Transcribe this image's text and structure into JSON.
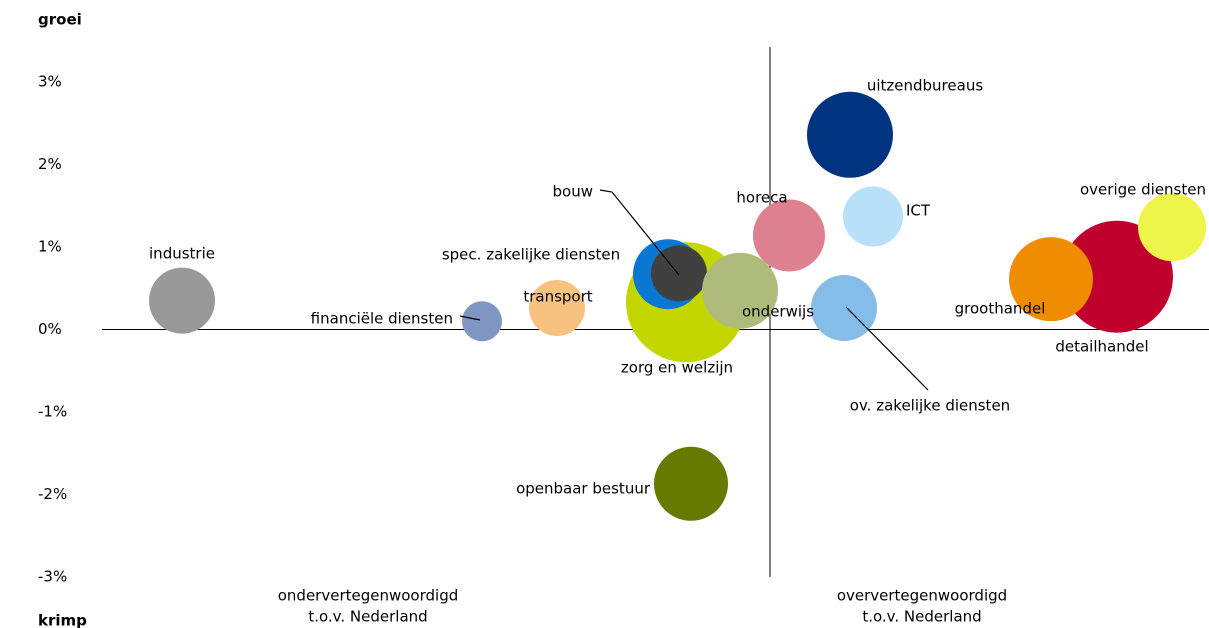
{
  "chart_data": {
    "type": "bubble",
    "y_label_top": "groei",
    "y_label_bottom": "krimp",
    "x_label_left": [
      "ondervertegenwoordigd",
      "t.o.v. Nederland"
    ],
    "x_label_right": [
      "oververtegenwoordigd",
      "t.o.v. Nederland"
    ],
    "categories": [
      "industrie",
      "financiële diensten",
      "transport",
      "zorg en welzijn",
      "spec. zakelijke diensten",
      "bouw",
      "onderwijs",
      "horeca",
      "uitzendbureaus",
      "ICT",
      "ov. zakelijke diensten",
      "detailhandel",
      "groothandel",
      "overige diensten",
      "openbaar bestuur"
    ],
    "x": [
      -5.88,
      -2.88,
      -2.13,
      -0.84,
      -1.02,
      -0.91,
      -0.3,
      0.19,
      0.8,
      1.03,
      0.74,
      3.47,
      2.81,
      4.02,
      -0.79
    ],
    "y": [
      0.35,
      0.1,
      0.26,
      0.33,
      0.67,
      0.68,
      0.47,
      1.14,
      2.36,
      1.37,
      0.26,
      0.64,
      0.61,
      1.24,
      -1.87
    ],
    "size": [
      33,
      20,
      28,
      60,
      35,
      28,
      38,
      36,
      43,
      30,
      33,
      56,
      42,
      34,
      37
    ],
    "colors": [
      "#999999",
      "#7f96c2",
      "#f7c27f",
      "#c4d600",
      "#0a77d2",
      "#404040",
      "#aebb7a",
      "#de8090",
      "#003380",
      "#b8e0f8",
      "#85bce8",
      "#c0002d",
      "#f08c00",
      "#eef54a",
      "#667a00"
    ],
    "xlim": [
      -6.68,
      4.39
    ],
    "ylim": [
      -3,
      3
    ],
    "yticks": [
      {
        "value": 3,
        "label": "3%"
      },
      {
        "value": 2,
        "label": "2%"
      },
      {
        "value": 1,
        "label": "1%"
      },
      {
        "value": 0,
        "label": "0%"
      },
      {
        "value": -1,
        "label": "-1%"
      },
      {
        "value": -2,
        "label": "-2%"
      },
      {
        "value": -3,
        "label": "-3%"
      }
    ]
  }
}
